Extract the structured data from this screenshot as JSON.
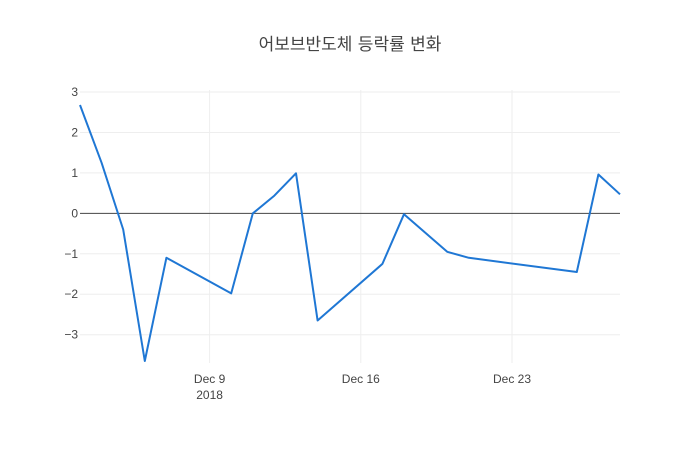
{
  "chart_data": {
    "type": "line",
    "title": "어보브반도체 등락률 변화",
    "xlabel": "",
    "ylabel": "",
    "x_start": "2018-12-03",
    "x_end": "2018-12-28",
    "ylim": [
      -3.7,
      3.05
    ],
    "yticks": [
      3,
      2,
      1,
      0,
      -1,
      -2,
      -3
    ],
    "ytick_labels": [
      "3",
      "2",
      "1",
      "0",
      "−1",
      "−2",
      "−3"
    ],
    "xticks": [
      {
        "date": "2018-12-09",
        "label": "Dec 9",
        "sublabel": "2018"
      },
      {
        "date": "2018-12-16",
        "label": "Dec 16",
        "sublabel": ""
      },
      {
        "date": "2018-12-23",
        "label": "Dec 23",
        "sublabel": ""
      }
    ],
    "grid": true,
    "legend": "none",
    "color": "#1f77d4",
    "series": [
      {
        "x": [
          "2018-12-03",
          "2018-12-04",
          "2018-12-05",
          "2018-12-06",
          "2018-12-07",
          "2018-12-10",
          "2018-12-11",
          "2018-12-12",
          "2018-12-13",
          "2018-12-14",
          "2018-12-17",
          "2018-12-18",
          "2018-12-20",
          "2018-12-21",
          "2018-12-26",
          "2018-12-27",
          "2018-12-28"
        ],
        "y": [
          2.68,
          1.25,
          -0.4,
          -3.65,
          -1.1,
          -1.98,
          0.0,
          0.44,
          0.99,
          -2.65,
          -1.25,
          -0.02,
          -0.95,
          -1.1,
          -1.45,
          0.96,
          0.47
        ]
      }
    ]
  }
}
